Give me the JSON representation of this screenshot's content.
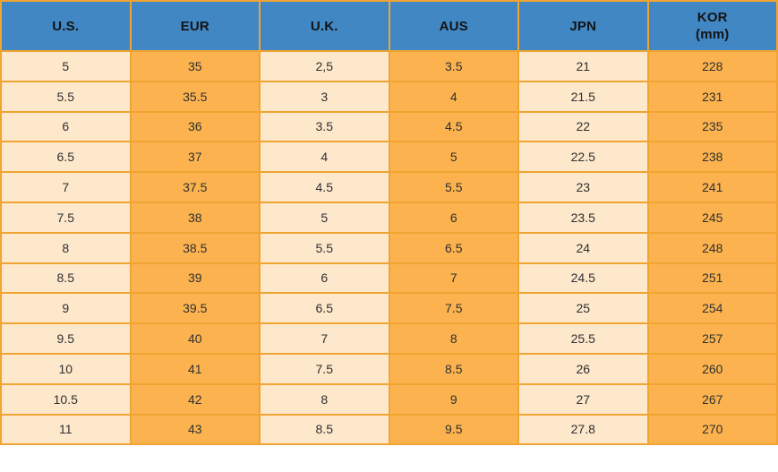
{
  "chart_data": {
    "type": "table",
    "title": "",
    "columns": [
      {
        "label": "U.S."
      },
      {
        "label": "EUR"
      },
      {
        "label": "U.K."
      },
      {
        "label": "AUS"
      },
      {
        "label": "JPN"
      },
      {
        "label": "KOR",
        "sublabel": "(mm)"
      }
    ],
    "rows": [
      [
        "5",
        "35",
        "2,5",
        "3.5",
        "21",
        "228"
      ],
      [
        "5.5",
        "35.5",
        "3",
        "4",
        "21.5",
        "231"
      ],
      [
        "6",
        "36",
        "3.5",
        "4.5",
        "22",
        "235"
      ],
      [
        "6.5",
        "37",
        "4",
        "5",
        "22.5",
        "238"
      ],
      [
        "7",
        "37.5",
        "4.5",
        "5.5",
        "23",
        "241"
      ],
      [
        "7.5",
        "38",
        "5",
        "6",
        "23.5",
        "245"
      ],
      [
        "8",
        "38.5",
        "5.5",
        "6.5",
        "24",
        "248"
      ],
      [
        "8.5",
        "39",
        "6",
        "7",
        "24.5",
        "251"
      ],
      [
        "9",
        "39.5",
        "6.5",
        "7.5",
        "25",
        "254"
      ],
      [
        "9.5",
        "40",
        "7",
        "8",
        "25.5",
        "257"
      ],
      [
        "10",
        "41",
        "7.5",
        "8.5",
        "26",
        "260"
      ],
      [
        "10.5",
        "42",
        "8",
        "9",
        "27",
        "267"
      ],
      [
        "11",
        "43",
        "8.5",
        "9.5",
        "27.8",
        "270"
      ]
    ]
  },
  "colors": {
    "header_bg": "#4187C4",
    "cell_cream": "#FDE8CC",
    "cell_orange": "#FCB34F",
    "border": "#F0A432",
    "header_text": "#141414",
    "cell_text": "#303030",
    "page_bg": "#FFFFFF"
  }
}
